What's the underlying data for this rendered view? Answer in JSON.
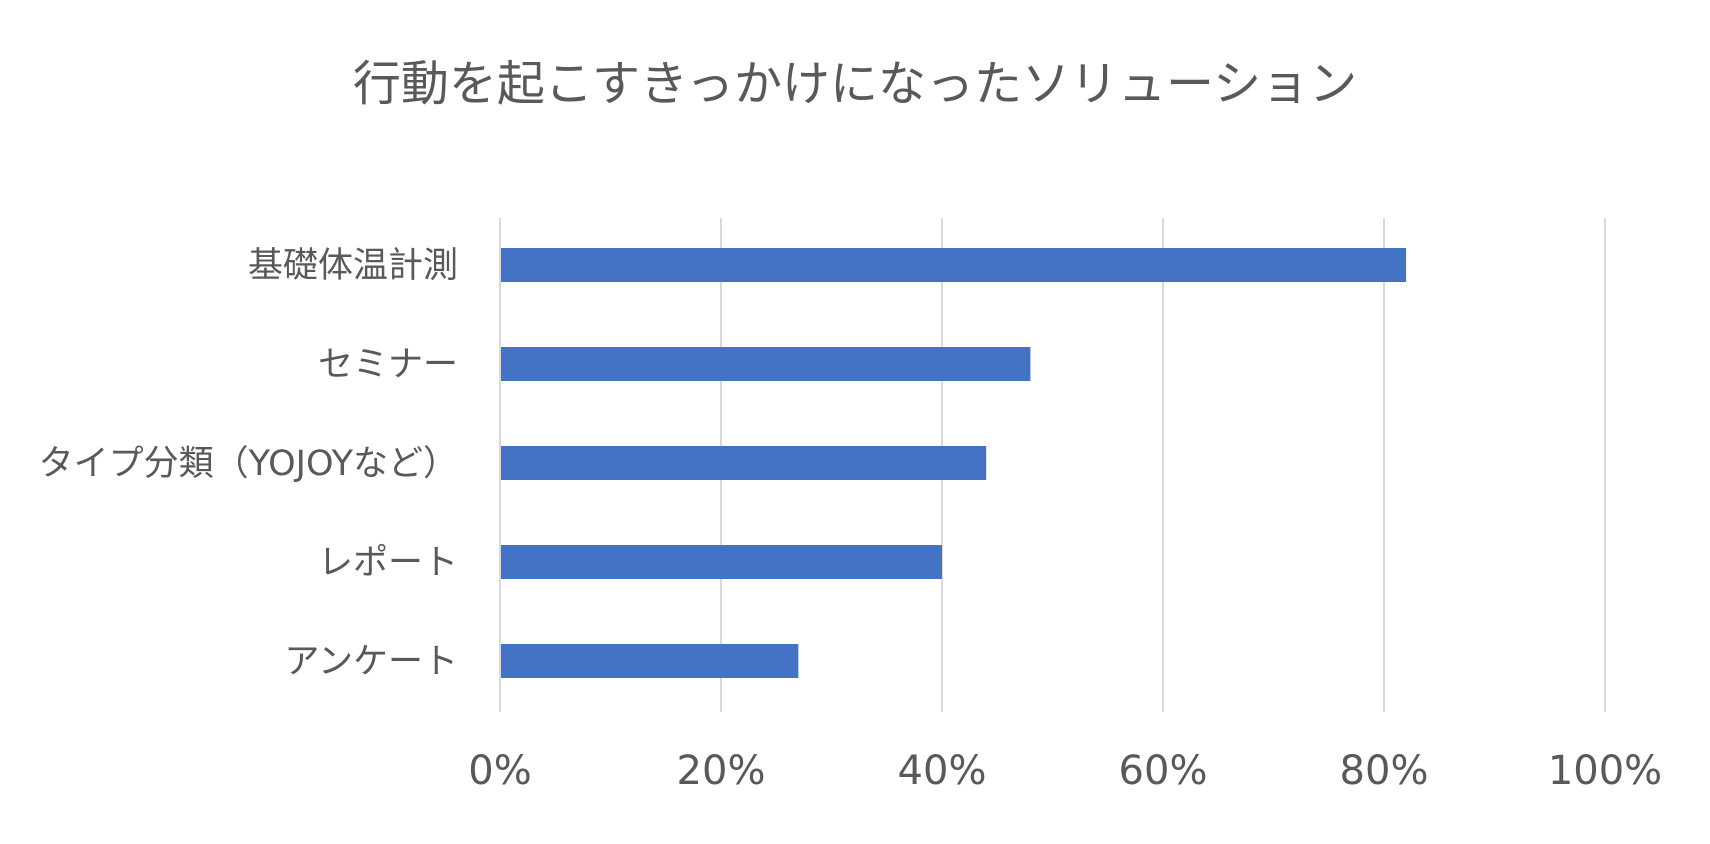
{
  "chart_data": {
    "type": "bar",
    "orientation": "horizontal",
    "title": "行動を起こすきっかけになったソリューション",
    "categories": [
      "基礎体温計測",
      "セミナー",
      "タイプ分類（YOJOYなど）",
      "レポート",
      "アンケート"
    ],
    "values": [
      82,
      48,
      44,
      40,
      27
    ],
    "value_unit": "%",
    "xlim": [
      0,
      100
    ],
    "x_ticks": [
      0,
      20,
      40,
      60,
      80,
      100
    ],
    "x_tick_labels": [
      "0%",
      "20%",
      "40%",
      "60%",
      "80%",
      "100%"
    ],
    "xlabel": "",
    "ylabel": "",
    "grid": "vertical",
    "legend": "none",
    "colors": {
      "bar": "#4472C4",
      "grid": "#D9D9D9",
      "text": "#595959"
    }
  }
}
